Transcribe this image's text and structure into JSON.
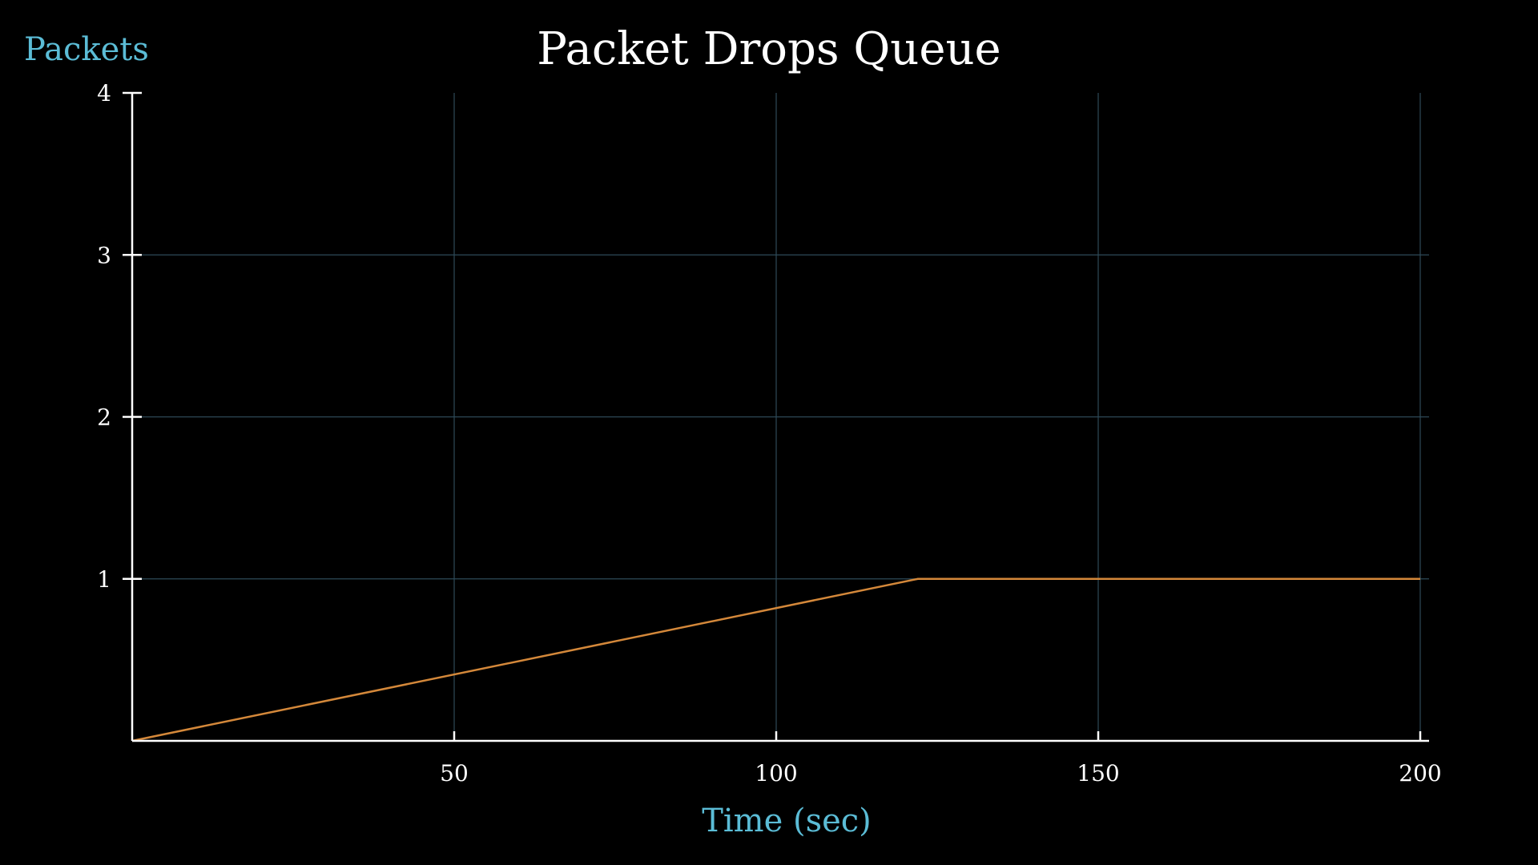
{
  "chart_data": {
    "type": "line",
    "title": "Packet Drops Queue",
    "xlabel": "Time (sec)",
    "ylabel": "Packets",
    "xlim": [
      0,
      200
    ],
    "ylim": [
      0,
      4
    ],
    "xticks": [
      50,
      100,
      150,
      200
    ],
    "yticks": [
      1,
      2,
      3,
      4
    ],
    "grid": true,
    "series": [
      {
        "color": "#d4883a",
        "x": [
          0,
          122,
          200
        ],
        "y": [
          0,
          1,
          1
        ]
      }
    ]
  },
  "colors": {
    "background": "#000000",
    "text": "#ffffff",
    "axis_label": "#5bbcd6",
    "grid": "#2e4a58"
  }
}
